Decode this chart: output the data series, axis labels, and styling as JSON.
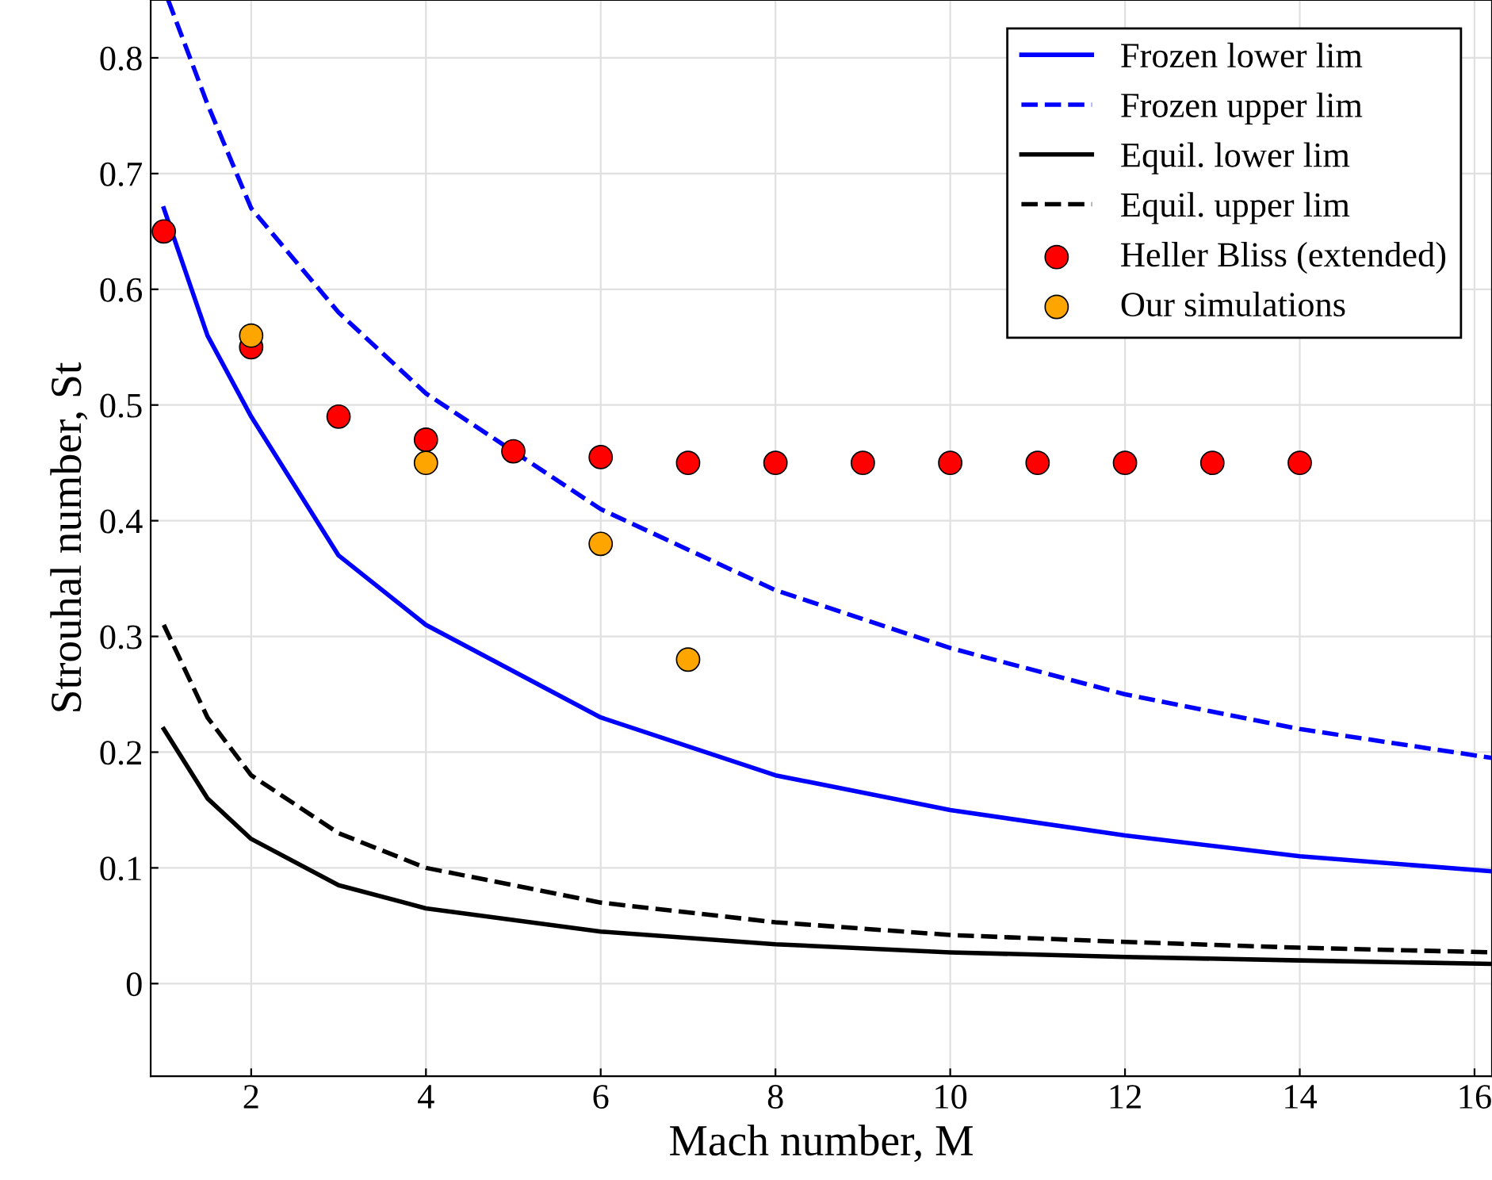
{
  "chart_data": {
    "type": "line",
    "xlabel": "Mach number, M",
    "ylabel": "Strouhal number, St",
    "xlim": [
      0.85,
      16.2
    ],
    "ylim": [
      -0.08,
      0.85
    ],
    "xticks": [
      2,
      4,
      6,
      8,
      10,
      12,
      14,
      16
    ],
    "yticks": [
      0,
      0.1,
      0.2,
      0.3,
      0.4,
      0.5,
      0.6,
      0.7,
      0.8
    ],
    "grid": true,
    "legend": "top right",
    "series": [
      {
        "name": "Frozen lower lim",
        "line_style": "solid",
        "color": "#0000ff",
        "x": [
          1,
          1.5,
          2,
          3,
          4,
          6,
          8,
          10,
          12,
          14,
          16.2
        ],
        "values": [
          0.67,
          0.56,
          0.49,
          0.37,
          0.31,
          0.23,
          0.18,
          0.15,
          0.128,
          0.11,
          0.097
        ]
      },
      {
        "name": "Frozen upper lim",
        "line_style": "dashed",
        "color": "#0000ff",
        "x": [
          1.05,
          1.5,
          2,
          3,
          4,
          6,
          8,
          10,
          12,
          14,
          16.2
        ],
        "values": [
          0.85,
          0.76,
          0.67,
          0.58,
          0.51,
          0.41,
          0.34,
          0.29,
          0.25,
          0.22,
          0.195
        ]
      },
      {
        "name": "Equil. lower lim",
        "line_style": "solid",
        "color": "#000000",
        "x": [
          1,
          1.5,
          2,
          3,
          4,
          6,
          8,
          10,
          12,
          14,
          16.2
        ],
        "values": [
          0.22,
          0.16,
          0.125,
          0.085,
          0.065,
          0.045,
          0.034,
          0.027,
          0.023,
          0.02,
          0.017
        ]
      },
      {
        "name": "Equil. upper lim",
        "line_style": "dashed",
        "color": "#000000",
        "x": [
          1,
          1.5,
          2,
          3,
          4,
          6,
          8,
          10,
          12,
          14,
          16.2
        ],
        "values": [
          0.31,
          0.23,
          0.18,
          0.13,
          0.1,
          0.07,
          0.053,
          0.042,
          0.036,
          0.031,
          0.027
        ]
      },
      {
        "name": "Heller Bliss (extended)",
        "type": "scatter",
        "marker": "circle",
        "color": "#ff0000",
        "x": [
          1,
          2,
          3,
          4,
          5,
          6,
          7,
          8,
          9,
          10,
          11,
          12,
          13,
          14
        ],
        "values": [
          0.65,
          0.55,
          0.49,
          0.47,
          0.46,
          0.455,
          0.45,
          0.45,
          0.45,
          0.45,
          0.45,
          0.45,
          0.45,
          0.45
        ]
      },
      {
        "name": "Our simulations",
        "type": "scatter",
        "marker": "circle",
        "color": "#ffa500",
        "x": [
          2,
          4,
          6,
          7
        ],
        "values": [
          0.56,
          0.45,
          0.38,
          0.28
        ]
      }
    ]
  }
}
